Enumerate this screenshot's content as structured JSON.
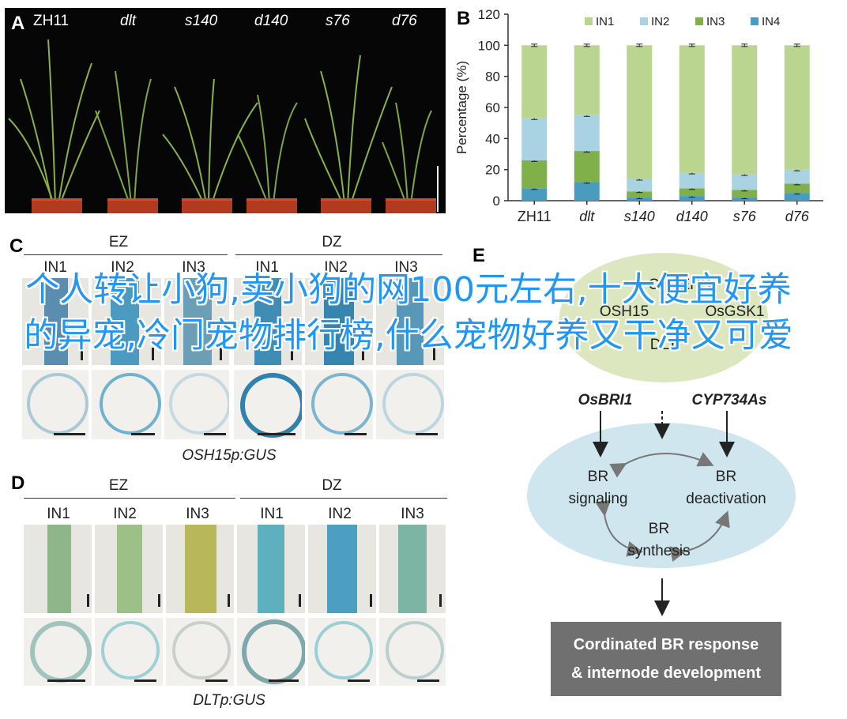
{
  "panels": {
    "a": {
      "letter": "A",
      "plants": [
        "ZH11",
        "dlt",
        "s140",
        "d140",
        "s76",
        "d76"
      ]
    },
    "b": {
      "letter": "B"
    },
    "c": {
      "letter": "C",
      "groups": [
        "EZ",
        "DZ"
      ],
      "columns": [
        "IN1",
        "IN2",
        "IN3",
        "IN1",
        "IN2",
        "IN3"
      ],
      "caption": "OSH15p:GUS"
    },
    "d": {
      "letter": "D",
      "groups": [
        "EZ",
        "DZ"
      ],
      "columns": [
        "IN1",
        "IN2",
        "IN3",
        "IN1",
        "IN2",
        "IN3"
      ],
      "caption": "DLTp:GUS"
    },
    "e": {
      "letter": "E",
      "top_labels": [
        "OTHERS",
        "OSH15",
        "OsGSK1",
        "DLT"
      ],
      "genes": [
        "OsBRI1",
        "CYP734As"
      ],
      "cycle": [
        "BR\nsignaling",
        "BR\ndeactivation",
        "BR\nsynthesis"
      ],
      "result_line1": "Cordinated BR response",
      "result_line2": "& internode development"
    }
  },
  "overlay_text": "个人转让小狗,卖小狗的网100元左右,十大便宜好养的异宠,冷门宠物排行榜,什么宠物好养又干净又可爱",
  "chart_data": {
    "type": "bar",
    "stacked": true,
    "categories": [
      "ZH11",
      "dlt",
      "s140",
      "d140",
      "s76",
      "d76"
    ],
    "ylabel": "Percentage (%)",
    "ylim": [
      0,
      120
    ],
    "yticks": [
      0,
      20,
      40,
      60,
      80,
      100,
      120
    ],
    "legend_position": "top",
    "series": [
      {
        "name": "IN4",
        "color": "#4a9bc0",
        "values": [
          8,
          12,
          2,
          3,
          2,
          5
        ]
      },
      {
        "name": "IN3",
        "color": "#7fb04a",
        "values": [
          18,
          20,
          4,
          5,
          5,
          6
        ]
      },
      {
        "name": "IN2",
        "color": "#a9d3e3",
        "values": [
          27,
          23,
          8,
          10,
          10,
          9
        ]
      },
      {
        "name": "IN1",
        "color": "#b9d58f",
        "values": [
          47,
          45,
          86,
          82,
          83,
          80
        ]
      }
    ]
  }
}
